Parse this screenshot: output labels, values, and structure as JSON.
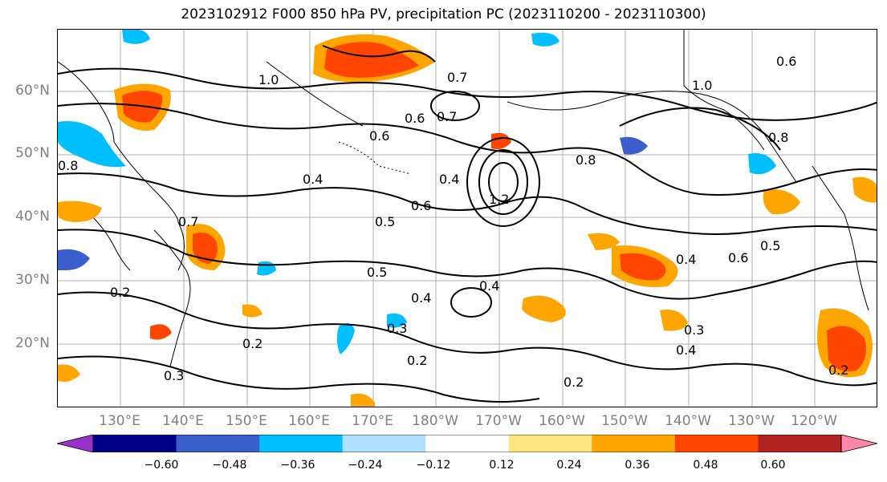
{
  "title": "2023102912 F000 850 hPa PV, precipitation PC (2023110200 - 2023110300)",
  "lat_labels": [
    "60°N",
    "50°N",
    "40°N",
    "30°N",
    "20°N"
  ],
  "lon_labels": [
    "130°E",
    "140°E",
    "150°E",
    "160°E",
    "170°E",
    "180°W",
    "170°W",
    "160°W",
    "150°W",
    "140°W",
    "130°W",
    "120°W"
  ],
  "contour_labels": [
    "1.0",
    "0.7",
    "0.6",
    "0.7",
    "0.6",
    "0.4",
    "0.6",
    "1.2",
    "0.8",
    "0.5",
    "0.4",
    "0.5",
    "0.4",
    "0.2",
    "0.2",
    "0.3",
    "0.2",
    "0.3",
    "0.4",
    "0.5",
    "0.6",
    "0.2",
    "0.3",
    "0.8",
    "0.4",
    "0.6",
    "0.2",
    "0.7",
    "1.0",
    "0.8",
    "0.4"
  ],
  "colorbar": {
    "tick_labels": [
      "−0.60",
      "−0.48",
      "−0.36",
      "−0.24",
      "−0.12",
      "0.12",
      "0.24",
      "0.36",
      "0.48",
      "0.60"
    ],
    "colors": [
      "#9932cc",
      "#00008b",
      "#3a5fcd",
      "#00bfff",
      "#b0e0ff",
      "#ffffff",
      "#ffe680",
      "#ffa500",
      "#ff4500",
      "#b22222",
      "#ff88aa"
    ],
    "extend": "both"
  }
}
